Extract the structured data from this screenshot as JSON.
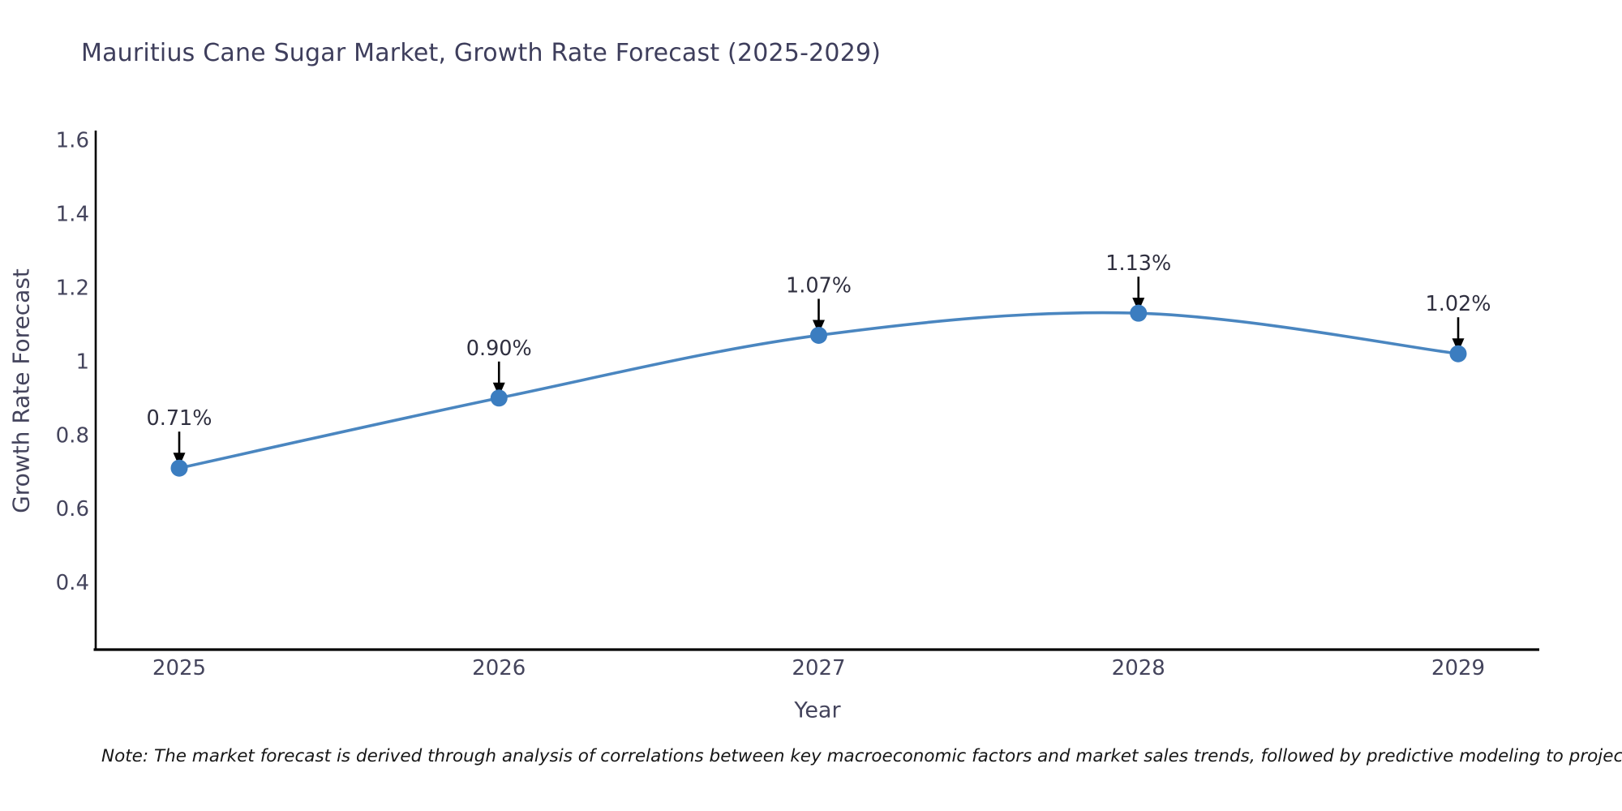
{
  "title": "Mauritius Cane Sugar Market, Growth Rate Forecast (2025-2029)",
  "footnote": "Note: The market forecast is derived through analysis of correlations between key macroeconomic factors and market sales trends, followed by predictive modeling to project future sales",
  "chart_data": {
    "type": "line",
    "title": "Mauritius Cane Sugar Market, Growth Rate Forecast (2025-2029)",
    "xlabel": "Year",
    "ylabel": "Growth Rate Forecast",
    "categories": [
      "2025",
      "2026",
      "2027",
      "2028",
      "2029"
    ],
    "series": [
      {
        "name": "Growth Rate Forecast",
        "values": [
          0.71,
          0.9,
          1.07,
          1.13,
          1.02
        ],
        "point_labels": [
          "0.71%",
          "0.90%",
          "1.07%",
          "1.13%",
          "1.02%"
        ]
      }
    ],
    "line_shape": "spline",
    "grid": false,
    "legend": "none",
    "ylim": [
      0.218,
      1.625
    ],
    "yticks": [
      {
        "value": 0.4,
        "label": "0.4"
      },
      {
        "value": 0.6,
        "label": "0.6"
      },
      {
        "value": 0.8,
        "label": "0.8"
      },
      {
        "value": 1.0,
        "label": "1"
      },
      {
        "value": 1.2,
        "label": "1.2"
      },
      {
        "value": 1.4,
        "label": "1.4"
      },
      {
        "value": 1.6,
        "label": "1.6"
      }
    ],
    "colors": {
      "line": "#4a86c0",
      "marker": "#3b7dc0",
      "axis_line": "#000000",
      "tick_text": "#44445c",
      "annotation_text": "#2f2f3f",
      "annotation_arrow": "#000000"
    }
  }
}
